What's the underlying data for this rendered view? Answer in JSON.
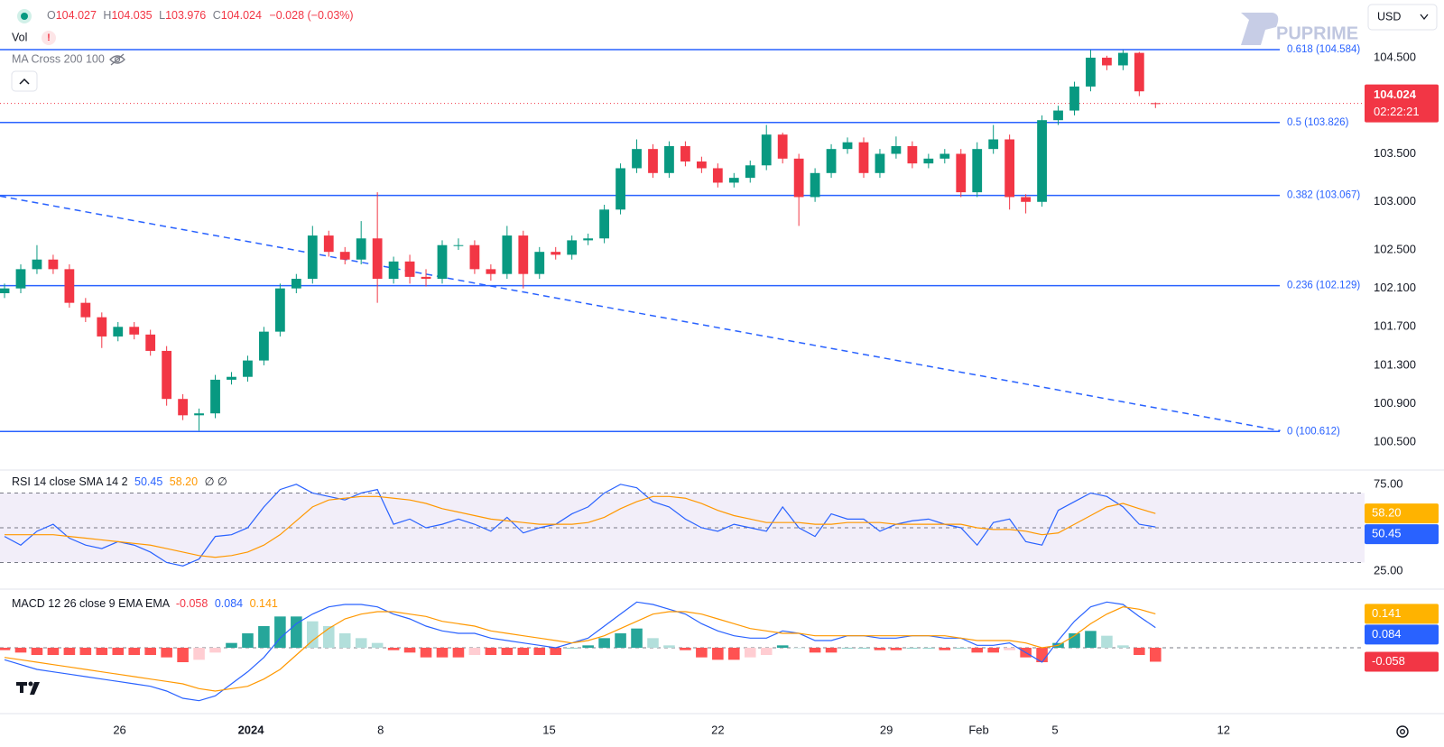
{
  "header": {
    "keys": [
      "O",
      "H",
      "L",
      "C"
    ],
    "change": "−0.028 (−0.03%)",
    "indicators": [
      "Vol",
      "MA Cross 200 100"
    ],
    "currency": "USD",
    "logo": "PUPRIME"
  },
  "chart_data": [
    {
      "type": "candlestick",
      "colors": {
        "up": "#089981",
        "down": "#f23645"
      },
      "xlim": [
        -0.28,
        83.9
      ],
      "xticks": [
        {
          "value": 7.1,
          "label": "26"
        },
        {
          "value": 15.2,
          "label": "2024",
          "bold": true
        },
        {
          "value": 23.2,
          "label": "8"
        },
        {
          "value": 33.6,
          "label": "15"
        },
        {
          "value": 44,
          "label": "22"
        },
        {
          "value": 54.4,
          "label": "29"
        },
        {
          "value": 60.1,
          "label": "Feb"
        },
        {
          "value": 64.8,
          "label": "5"
        },
        {
          "value": 75.2,
          "label": "12"
        }
      ],
      "ylim": [
        100.22,
        105.1
      ],
      "yticks": [
        {
          "value": 104.5,
          "label": "104.500"
        },
        {
          "value": 103.5,
          "label": "103.500"
        },
        {
          "value": 103,
          "label": "103.000"
        },
        {
          "value": 102.5,
          "label": "102.500"
        },
        {
          "value": 102.1,
          "label": "102.100"
        },
        {
          "value": 101.7,
          "label": "101.700"
        },
        {
          "value": 101.3,
          "label": "101.300"
        },
        {
          "value": 100.9,
          "label": "100.900"
        },
        {
          "value": 100.5,
          "label": "100.500"
        }
      ],
      "countdown": "02:22:21",
      "candles": {
        "open": [
          102.05,
          102.1,
          102.3,
          102.4,
          102.3,
          101.95,
          101.8,
          101.6,
          101.7,
          101.62,
          101.45,
          100.95,
          100.78,
          100.8,
          101.15,
          101.18,
          101.35,
          101.65,
          102.1,
          102.2,
          102.65,
          102.48,
          102.4,
          102.62,
          102.2,
          102.38,
          102.22,
          102.2,
          102.55,
          102.55,
          102.3,
          102.25,
          102.65,
          102.25,
          102.48,
          102.45,
          102.6,
          102.62,
          102.92,
          103.35,
          103.55,
          103.3,
          103.58,
          103.42,
          103.35,
          103.2,
          103.25,
          103.38,
          103.7,
          103.45,
          103.05,
          103.3,
          103.55,
          103.62,
          103.3,
          103.5,
          103.58,
          103.4,
          103.45,
          103.5,
          103.1,
          103.55,
          103.65,
          103.05,
          103.0,
          103.85,
          103.95,
          104.2,
          104.5,
          104.42,
          104.55,
          104.027
        ],
        "high": [
          102.15,
          102.35,
          102.55,
          102.45,
          102.35,
          102.0,
          101.85,
          101.75,
          101.75,
          101.67,
          101.5,
          101.0,
          100.85,
          101.2,
          101.23,
          101.4,
          101.7,
          102.15,
          102.25,
          102.75,
          102.7,
          102.53,
          102.8,
          103.1,
          102.43,
          102.45,
          102.3,
          102.6,
          102.62,
          102.6,
          102.35,
          102.75,
          102.7,
          102.53,
          102.53,
          102.65,
          102.67,
          102.97,
          103.4,
          103.65,
          103.6,
          103.63,
          103.63,
          103.47,
          103.4,
          103.3,
          103.43,
          103.8,
          103.72,
          103.5,
          103.35,
          103.6,
          103.67,
          103.67,
          103.55,
          103.68,
          103.63,
          103.5,
          103.55,
          103.55,
          103.62,
          103.8,
          103.7,
          103.08,
          103.9,
          104.0,
          104.25,
          104.58,
          104.52,
          104.58,
          104.56,
          104.035
        ],
        "low": [
          102.0,
          102.05,
          102.25,
          102.25,
          101.9,
          101.75,
          101.48,
          101.55,
          101.57,
          101.4,
          100.88,
          100.73,
          100.62,
          100.75,
          101.1,
          101.13,
          101.3,
          101.6,
          102.05,
          102.15,
          102.43,
          102.35,
          102.35,
          101.95,
          102.15,
          102.15,
          102.12,
          102.15,
          102.5,
          102.25,
          102.18,
          102.2,
          102.1,
          102.2,
          102.4,
          102.4,
          102.55,
          102.57,
          102.87,
          103.3,
          103.25,
          103.25,
          103.37,
          103.3,
          103.15,
          103.15,
          103.2,
          103.33,
          103.4,
          102.75,
          103.0,
          103.25,
          103.5,
          103.25,
          103.25,
          103.45,
          103.35,
          103.35,
          103.4,
          103.05,
          103.05,
          103.5,
          102.92,
          102.88,
          102.95,
          103.8,
          103.9,
          104.15,
          104.37,
          104.37,
          104.1,
          103.976
        ],
        "close": [
          102.1,
          102.3,
          102.4,
          102.3,
          101.95,
          101.8,
          101.6,
          101.7,
          101.62,
          101.45,
          100.95,
          100.78,
          100.8,
          101.15,
          101.18,
          101.35,
          101.65,
          102.1,
          102.2,
          102.65,
          102.48,
          102.4,
          102.62,
          102.2,
          102.38,
          102.22,
          102.2,
          102.55,
          102.55,
          102.3,
          102.25,
          102.65,
          102.25,
          102.48,
          102.45,
          102.6,
          102.62,
          102.92,
          103.35,
          103.55,
          103.3,
          103.58,
          103.42,
          103.35,
          103.2,
          103.25,
          103.38,
          103.7,
          103.45,
          103.05,
          103.3,
          103.55,
          103.62,
          103.3,
          103.5,
          103.58,
          103.4,
          103.45,
          103.5,
          103.1,
          103.55,
          103.65,
          103.05,
          103.0,
          103.85,
          103.95,
          104.2,
          104.5,
          104.42,
          104.55,
          104.15,
          104.024
        ]
      },
      "levels": [
        {
          "value": 104.584,
          "label": "0.618 (104.584)"
        },
        {
          "value": 103.826,
          "label": "0.5 (103.826)"
        },
        {
          "value": 103.067,
          "label": "0.382 (103.067)"
        },
        {
          "value": 102.129,
          "label": "0.236 (102.129)"
        },
        {
          "value": 100.612,
          "label": "0 (100.612)"
        }
      ],
      "level_color": "#2962ff",
      "trendline": {
        "x": [
          -0.28,
          78.7
        ],
        "y": [
          103.06,
          100.62
        ],
        "color": "#2962ff"
      }
    },
    {
      "type": "line",
      "title": "RSI 14 close SMA 14 2",
      "extra": "∅ ∅",
      "ylim": [
        15.2,
        82.7
      ],
      "yticks": [
        {
          "value": 75,
          "label": "75.00"
        },
        {
          "value": 25,
          "label": "25.00"
        }
      ],
      "bands": [
        70,
        50,
        30
      ],
      "series": [
        {
          "color": "#2962ff",
          "values": [
            45,
            40,
            48,
            52,
            44,
            40,
            38,
            42,
            40,
            36,
            30,
            28,
            32,
            45,
            46,
            50,
            62,
            72,
            75,
            70,
            68,
            66,
            70,
            72,
            52,
            55,
            50,
            52,
            55,
            52,
            48,
            56,
            47,
            50,
            52,
            58,
            62,
            70,
            75,
            73,
            65,
            62,
            55,
            50,
            48,
            52,
            50,
            48,
            62,
            50,
            45,
            58,
            55,
            55,
            48,
            52,
            54,
            55,
            52,
            50,
            40,
            53,
            55,
            42,
            40,
            60,
            65,
            70,
            68,
            62,
            52,
            50.45
          ]
        },
        {
          "color": "#ff9800",
          "last_label": "58.20",
          "values": [
            46,
            46,
            46,
            46,
            45,
            44,
            43,
            42,
            41,
            40,
            38,
            36,
            34,
            33,
            34,
            36,
            40,
            46,
            54,
            62,
            66,
            67,
            68,
            68,
            67,
            66,
            64,
            61,
            59,
            57,
            55,
            54,
            53,
            52,
            52,
            52,
            53,
            56,
            61,
            65,
            68,
            68,
            67,
            64,
            60,
            57,
            55,
            53,
            53,
            53,
            52,
            52,
            53,
            53,
            53,
            52,
            52,
            52,
            52,
            52,
            50,
            49,
            49,
            48,
            46,
            47,
            52,
            57,
            62,
            64,
            61,
            58.2
          ]
        }
      ]
    },
    {
      "type": "combo",
      "title": "MACD 12 26 close 9 EMA EMA",
      "ylim": [
        -0.27,
        0.24
      ],
      "series": [
        {
          "type": "bar",
          "colors": [
            "#26a69a",
            "#b2dfdb",
            "#ff5252",
            "#ffcdd2"
          ],
          "values": [
            -0.01,
            -0.02,
            -0.03,
            -0.03,
            -0.03,
            -0.03,
            -0.03,
            -0.03,
            -0.03,
            -0.03,
            -0.04,
            -0.06,
            -0.05,
            -0.02,
            0.02,
            0.06,
            0.09,
            0.13,
            0.13,
            0.11,
            0.09,
            0.06,
            0.04,
            0.02,
            -0.01,
            -0.02,
            -0.04,
            -0.04,
            -0.04,
            -0.03,
            -0.03,
            -0.03,
            -0.03,
            -0.03,
            -0.03,
            0.0,
            0.01,
            0.04,
            0.06,
            0.08,
            0.04,
            0.01,
            -0.01,
            -0.04,
            -0.05,
            -0.05,
            -0.04,
            -0.03,
            0.01,
            0.0,
            -0.02,
            -0.02,
            0.0,
            0.0,
            -0.01,
            -0.01,
            0.0,
            0.0,
            -0.01,
            0.0,
            -0.02,
            -0.02,
            -0.01,
            -0.04,
            -0.06,
            0.02,
            0.06,
            0.07,
            0.05,
            0.01,
            -0.03,
            -0.058
          ]
        },
        {
          "type": "line",
          "color": "#2962ff",
          "values": [
            -0.05,
            -0.07,
            -0.09,
            -0.1,
            -0.11,
            -0.12,
            -0.13,
            -0.14,
            -0.15,
            -0.16,
            -0.18,
            -0.21,
            -0.22,
            -0.2,
            -0.15,
            -0.1,
            -0.04,
            0.04,
            0.1,
            0.14,
            0.17,
            0.18,
            0.18,
            0.17,
            0.14,
            0.12,
            0.09,
            0.07,
            0.06,
            0.06,
            0.04,
            0.03,
            0.02,
            0.01,
            0.0,
            0.02,
            0.04,
            0.09,
            0.14,
            0.19,
            0.18,
            0.16,
            0.14,
            0.1,
            0.07,
            0.05,
            0.04,
            0.04,
            0.07,
            0.06,
            0.03,
            0.03,
            0.05,
            0.05,
            0.04,
            0.04,
            0.05,
            0.05,
            0.04,
            0.04,
            0.01,
            0.01,
            0.02,
            -0.02,
            -0.06,
            0.03,
            0.11,
            0.17,
            0.19,
            0.18,
            0.13,
            0.084
          ]
        },
        {
          "type": "line",
          "color": "#ff9800",
          "values": [
            -0.04,
            -0.05,
            -0.06,
            -0.07,
            -0.08,
            -0.09,
            -0.1,
            -0.11,
            -0.12,
            -0.13,
            -0.14,
            -0.15,
            -0.17,
            -0.18,
            -0.17,
            -0.16,
            -0.13,
            -0.09,
            -0.03,
            0.03,
            0.08,
            0.12,
            0.14,
            0.15,
            0.15,
            0.14,
            0.13,
            0.11,
            0.1,
            0.09,
            0.07,
            0.06,
            0.05,
            0.04,
            0.03,
            0.02,
            0.03,
            0.05,
            0.08,
            0.11,
            0.14,
            0.15,
            0.15,
            0.14,
            0.12,
            0.1,
            0.08,
            0.07,
            0.06,
            0.06,
            0.05,
            0.05,
            0.05,
            0.05,
            0.05,
            0.05,
            0.05,
            0.05,
            0.05,
            0.04,
            0.03,
            0.03,
            0.03,
            0.02,
            0.0,
            0.01,
            0.05,
            0.1,
            0.14,
            0.17,
            0.16,
            0.141
          ]
        }
      ]
    }
  ]
}
